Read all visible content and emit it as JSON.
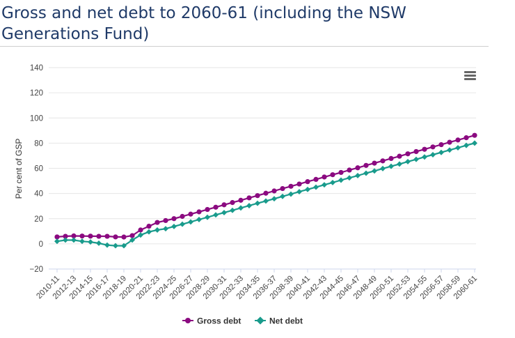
{
  "title": "Gross and net debt to 2060-61 (including the NSW Generations Fund)",
  "colors": {
    "gross": "#8b0a80",
    "net": "#199b8c",
    "grid": "#e6e6e6",
    "text": "#333333"
  },
  "icons": {
    "menu": "hamburger-menu-icon"
  },
  "chart_data": {
    "type": "line",
    "title": "Gross and net debt to 2060-61 (including the NSW Generations Fund)",
    "xlabel": "",
    "ylabel": "Per cent of GSP",
    "ylim": [
      -20,
      140
    ],
    "yticks": [
      -20,
      0,
      20,
      40,
      60,
      80,
      100,
      120,
      140
    ],
    "grid": true,
    "legend_position": "bottom-center",
    "x": [
      "2010-11",
      "2011-12",
      "2012-13",
      "2013-14",
      "2014-15",
      "2015-16",
      "2016-17",
      "2017-18",
      "2018-19",
      "2019-20",
      "2020-21",
      "2021-22",
      "2022-23",
      "2023-24",
      "2024-25",
      "2025-26",
      "2026-27",
      "2027-28",
      "2028-29",
      "2029-30",
      "2030-31",
      "2031-32",
      "2032-33",
      "2033-34",
      "2034-35",
      "2035-36",
      "2036-37",
      "2037-38",
      "2038-39",
      "2039-40",
      "2040-41",
      "2041-42",
      "2042-43",
      "2043-44",
      "2044-45",
      "2045-46",
      "2046-47",
      "2047-48",
      "2048-49",
      "2049-50",
      "2050-51",
      "2051-52",
      "2052-53",
      "2053-54",
      "2054-55",
      "2055-56",
      "2056-57",
      "2057-58",
      "2058-59",
      "2059-60",
      "2060-61"
    ],
    "x_tick_labels": [
      "2010-11",
      "2012-13",
      "2014-15",
      "2016-17",
      "2018-19",
      "2020-21",
      "2022-23",
      "2024-25",
      "2026-27",
      "2028-29",
      "2030-31",
      "2032-33",
      "2034-35",
      "2036-37",
      "2038-39",
      "2040-41",
      "2042-43",
      "2044-45",
      "2046-47",
      "2048-49",
      "2050-51",
      "2052-53",
      "2054-55",
      "2056-57",
      "2058-59",
      "2060-61"
    ],
    "series": [
      {
        "name": "Gross debt",
        "color": "#8b0a80",
        "values": [
          5.5,
          6.0,
          6.3,
          6.2,
          6.1,
          6.0,
          6.0,
          5.5,
          5.4,
          6.5,
          11.0,
          14.0,
          17.0,
          18.5,
          20.0,
          21.8,
          23.6,
          25.4,
          27.3,
          29.1,
          31.0,
          32.8,
          34.6,
          36.5,
          38.3,
          40.2,
          42.0,
          43.9,
          45.7,
          47.5,
          49.4,
          51.2,
          53.1,
          54.9,
          56.7,
          58.6,
          60.4,
          62.3,
          64.1,
          65.9,
          67.8,
          69.6,
          71.5,
          73.3,
          75.1,
          77.0,
          78.8,
          80.7,
          82.5,
          84.3,
          86.2
        ]
      },
      {
        "name": "Net debt",
        "color": "#199b8c",
        "values": [
          2.0,
          3.0,
          3.0,
          2.0,
          1.5,
          0.5,
          -1.0,
          -1.5,
          -1.5,
          3.0,
          7.0,
          9.5,
          11.0,
          12.0,
          13.8,
          15.6,
          17.4,
          19.3,
          21.1,
          23.0,
          24.8,
          26.6,
          28.5,
          30.3,
          32.2,
          34.0,
          35.8,
          37.7,
          39.5,
          41.4,
          43.2,
          45.0,
          46.9,
          48.7,
          50.6,
          52.4,
          54.2,
          56.1,
          57.9,
          59.8,
          61.6,
          63.4,
          65.3,
          67.1,
          69.0,
          70.8,
          72.6,
          74.5,
          76.3,
          78.2,
          80.0
        ]
      }
    ]
  }
}
